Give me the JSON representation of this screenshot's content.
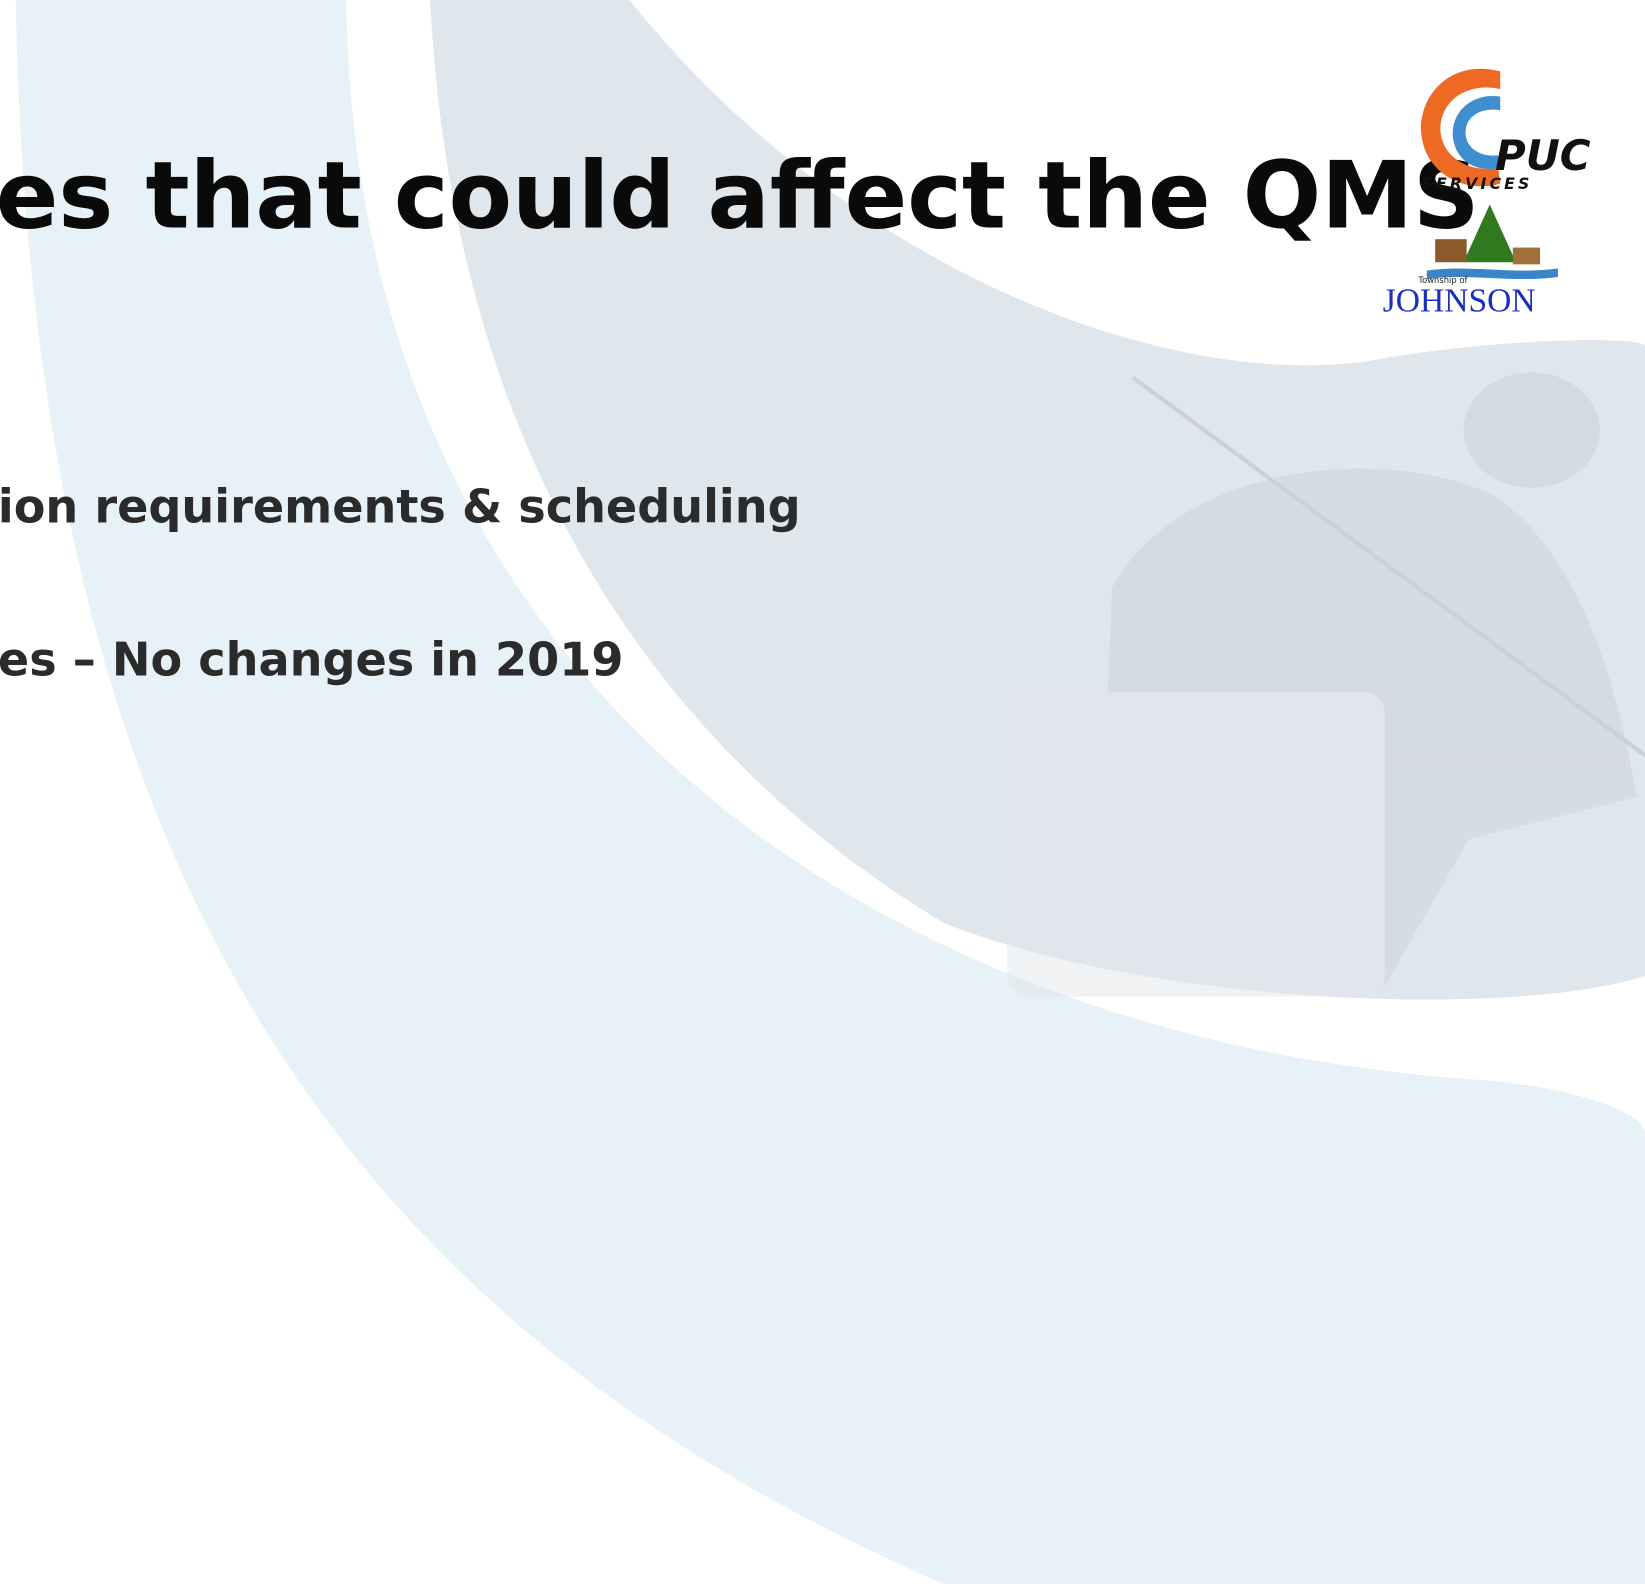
{
  "slide": {
    "title": "es that could affect the QMS",
    "bullets": [
      "ion requirements & scheduling",
      "es – No changes in 2019"
    ],
    "logos": {
      "puc": {
        "name": "PUC",
        "tagline": "SERVICES"
      },
      "johnson": {
        "prefix": "Township of",
        "name": "JOHNSON"
      }
    }
  }
}
